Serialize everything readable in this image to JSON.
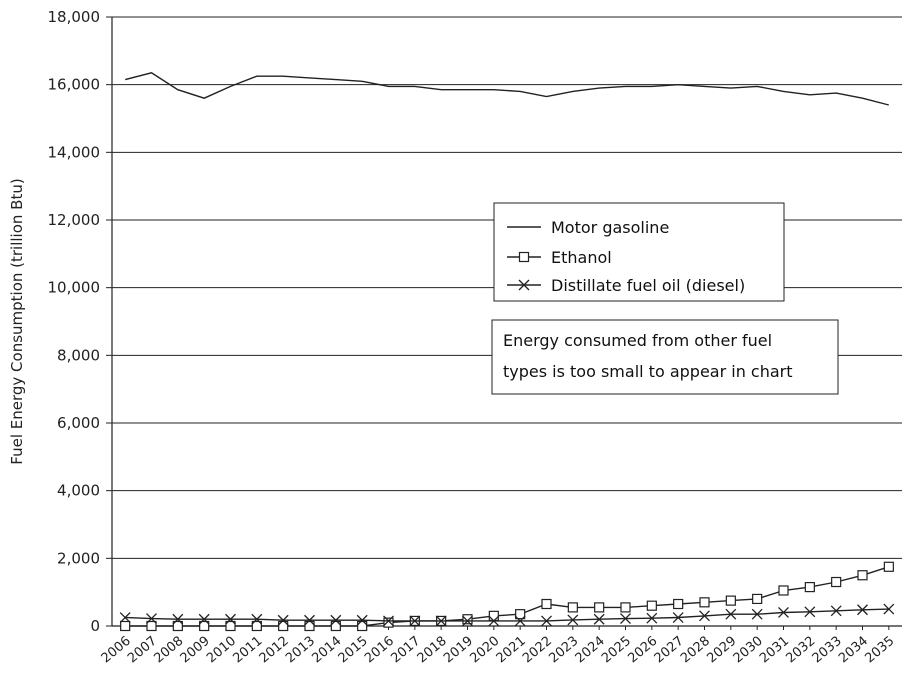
{
  "chart_data": {
    "type": "line",
    "title": "",
    "xlabel": "",
    "ylabel": "Fuel Energy Consumption (trillion Btu)",
    "ylim": [
      0,
      18000
    ],
    "yticks": [
      "0",
      "2,000",
      "4,000",
      "6,000",
      "8,000",
      "10,000",
      "12,000",
      "14,000",
      "16,000",
      "18,000"
    ],
    "grid": "horizontal",
    "legend_position": "center-right",
    "x": [
      "2006",
      "2007",
      "2008",
      "2009",
      "2010",
      "2011",
      "2012",
      "2013",
      "2014",
      "2015",
      "2016",
      "2017",
      "2018",
      "2019",
      "2020",
      "2021",
      "2022",
      "2023",
      "2024",
      "2025",
      "2026",
      "2027",
      "2028",
      "2029",
      "2030",
      "2031",
      "2032",
      "2033",
      "2034",
      "2035"
    ],
    "series": [
      {
        "name": "Motor gasoline",
        "marker": "none",
        "values": [
          16150,
          16350,
          15850,
          15600,
          15950,
          16250,
          16250,
          16200,
          16150,
          16100,
          15950,
          15950,
          15850,
          15850,
          15850,
          15800,
          15650,
          15800,
          15900,
          15950,
          15950,
          16000,
          15950,
          15900,
          15950,
          15800,
          15700,
          15750,
          15600,
          15400
        ]
      },
      {
        "name": "Ethanol",
        "marker": "square",
        "values": [
          0,
          0,
          0,
          0,
          0,
          0,
          0,
          0,
          0,
          0,
          100,
          150,
          150,
          200,
          300,
          350,
          650,
          550,
          550,
          550,
          600,
          650,
          700,
          750,
          800,
          1050,
          1150,
          1300,
          1500,
          1750
        ]
      },
      {
        "name": "Distillate fuel oil (diesel)",
        "marker": "x",
        "values": [
          250,
          220,
          200,
          200,
          200,
          200,
          170,
          170,
          170,
          170,
          150,
          150,
          150,
          150,
          150,
          150,
          150,
          180,
          200,
          220,
          230,
          250,
          300,
          350,
          350,
          400,
          420,
          450,
          480,
          500
        ]
      }
    ],
    "annotation": [
      "Energy consumed from other fuel",
      "types is too small to appear in chart"
    ]
  }
}
